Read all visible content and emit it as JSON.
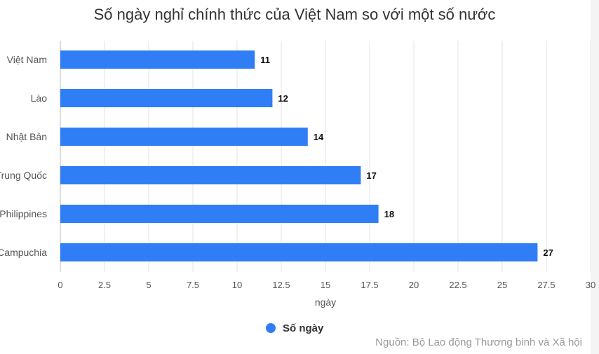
{
  "chart_data": {
    "type": "bar",
    "orientation": "horizontal",
    "title": "Số ngày nghỉ chính thức của Việt Nam so với một số nước",
    "categories": [
      "Việt Nam",
      "Lào",
      "Nhật Bản",
      "Trung Quốc",
      "Philippines",
      "Campuchia"
    ],
    "series": [
      {
        "name": "Số ngày",
        "values": [
          11,
          12,
          14,
          17,
          18,
          27
        ],
        "color": "#2f7ef5"
      }
    ],
    "xlabel": "ngày",
    "ylabel": "",
    "xlim": [
      0,
      30
    ],
    "xticks": [
      "0",
      "2.5",
      "5",
      "7.5",
      "10",
      "12.5",
      "15",
      "17.5",
      "20",
      "22.5",
      "25",
      "27.5",
      "30"
    ],
    "grid": true,
    "legend": "bottom"
  },
  "source": "Nguồn: Bộ Lao động Thương binh và Xã hội"
}
